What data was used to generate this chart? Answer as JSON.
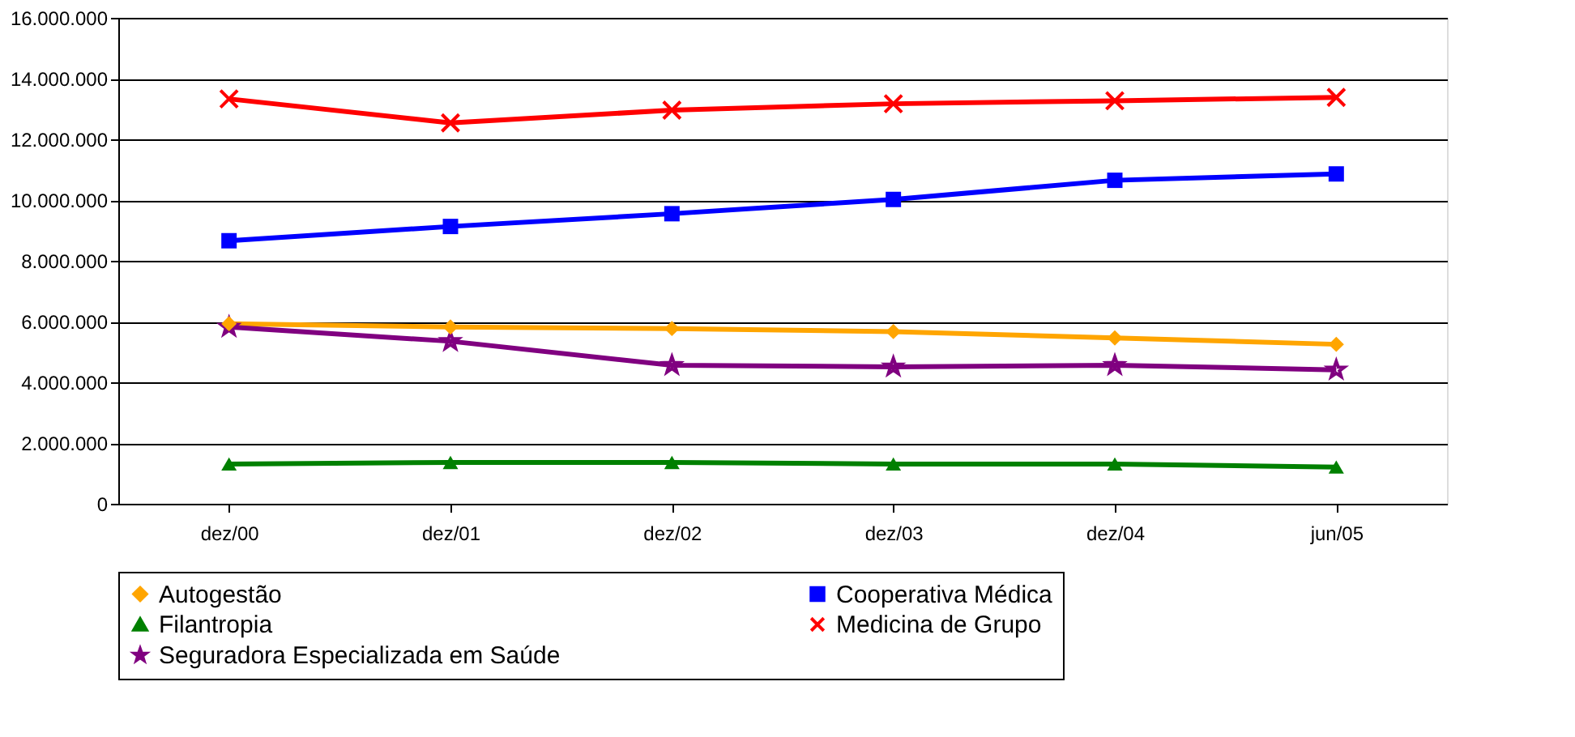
{
  "chart_data": {
    "type": "line",
    "categories": [
      "dez/00",
      "dez/01",
      "dez/02",
      "dez/03",
      "dez/04",
      "jun/05"
    ],
    "series": [
      {
        "name": "Autogestão",
        "color": "#ffa500",
        "marker": "diamond",
        "values": [
          5930000,
          5820000,
          5770000,
          5670000,
          5460000,
          5250000
        ]
      },
      {
        "name": "Cooperativa Médica",
        "color": "#0000ff",
        "marker": "square",
        "values": [
          8660000,
          9130000,
          9550000,
          10020000,
          10650000,
          10860000
        ]
      },
      {
        "name": "Filantropia",
        "color": "#008000",
        "marker": "triangle",
        "values": [
          1310000,
          1360000,
          1360000,
          1310000,
          1310000,
          1210000
        ]
      },
      {
        "name": "Medicina de Grupo",
        "color": "#ff0000",
        "marker": "cross",
        "values": [
          13330000,
          12540000,
          12960000,
          13170000,
          13270000,
          13380000
        ]
      },
      {
        "name": "Seguradora Especializada em Saúde",
        "color": "#800080",
        "marker": "star",
        "values": [
          5820000,
          5350000,
          4560000,
          4510000,
          4560000,
          4410000
        ]
      }
    ],
    "ylim": [
      0,
      16000000
    ],
    "yticks": [
      {
        "value": 0,
        "label": "0"
      },
      {
        "value": 2000000,
        "label": "2.000.000"
      },
      {
        "value": 4000000,
        "label": "4.000.000"
      },
      {
        "value": 6000000,
        "label": "6.000.000"
      },
      {
        "value": 8000000,
        "label": "8.000.000"
      },
      {
        "value": 10000000,
        "label": "10.000.000"
      },
      {
        "value": 12000000,
        "label": "12.000.000"
      },
      {
        "value": 14000000,
        "label": "14.000.000"
      },
      {
        "value": 16000000,
        "label": "16.000.000"
      }
    ],
    "grid": "y",
    "legend": "bottom",
    "line_style": "solid"
  }
}
